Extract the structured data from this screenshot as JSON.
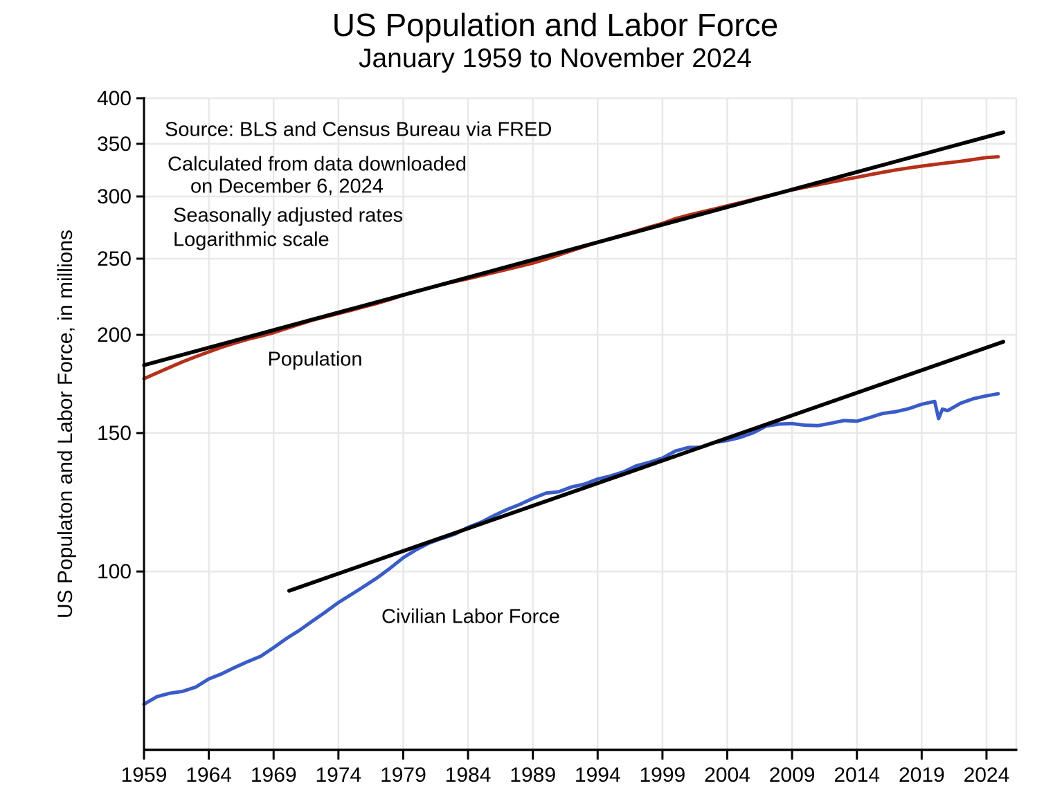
{
  "page": {
    "background": "#ffffff"
  },
  "chart_data": {
    "type": "line",
    "title": "US Population and Labor Force",
    "subtitle": "January 1959 to November 2024",
    "ylabel": "US Populaton and Labor Force, in millions",
    "xlabel": "",
    "x_scale": "linear",
    "y_scale": "log",
    "x_range": [
      1959,
      2026.3
    ],
    "y_range": [
      59.3,
      400
    ],
    "x_ticks": [
      1959,
      1964,
      1969,
      1974,
      1979,
      1984,
      1989,
      1994,
      1999,
      2004,
      2009,
      2014,
      2019,
      2024
    ],
    "y_ticks": [
      100,
      150,
      200,
      250,
      300,
      350,
      400
    ],
    "grid": true,
    "grid_color": "#e8e8e8",
    "axis_color": "#000000",
    "annotations": [
      {
        "text": "Source:  BLS and Census Bureau via FRED"
      },
      {
        "text": "Calculated from data downloaded"
      },
      {
        "text": "on December 6, 2024"
      },
      {
        "text": "Seasonally adjusted rates"
      },
      {
        "text": "Logarithmic scale"
      }
    ],
    "series": [
      {
        "name": "population",
        "label": "Population",
        "color": "#b5311a",
        "width": 5,
        "x": [
          1959,
          1960,
          1961,
          1962,
          1963,
          1964,
          1965,
          1966,
          1967,
          1968,
          1969,
          1970,
          1971,
          1972,
          1973,
          1974,
          1975,
          1976,
          1977,
          1978,
          1979,
          1980,
          1981,
          1982,
          1983,
          1984,
          1985,
          1986,
          1987,
          1988,
          1989,
          1990,
          1991,
          1992,
          1993,
          1994,
          1995,
          1996,
          1997,
          1998,
          1999,
          2000,
          2001,
          2002,
          2003,
          2004,
          2005,
          2006,
          2007,
          2008,
          2009,
          2010,
          2011,
          2012,
          2013,
          2014,
          2015,
          2016,
          2017,
          2018,
          2019,
          2020,
          2021,
          2022,
          2023,
          2024,
          2024.9
        ],
        "y": [
          175.9,
          178.9,
          181.9,
          184.9,
          187.6,
          190.3,
          192.9,
          195.2,
          197.4,
          199.3,
          201.3,
          203.8,
          206.3,
          208.8,
          210.9,
          212.9,
          215.0,
          217.2,
          219.4,
          221.9,
          224.6,
          227.2,
          229.5,
          231.7,
          233.8,
          235.8,
          237.9,
          240.1,
          242.3,
          244.5,
          246.8,
          249.6,
          252.7,
          256.0,
          259.2,
          262.3,
          265.2,
          268.1,
          271.1,
          274.2,
          277.2,
          281.1,
          284.0,
          286.6,
          289.1,
          291.8,
          294.5,
          297.4,
          300.2,
          303.0,
          305.8,
          308.2,
          310.5,
          312.8,
          315.1,
          317.3,
          319.7,
          322.0,
          324.2,
          326.1,
          327.9,
          329.5,
          331.0,
          332.5,
          334.3,
          336.2,
          337.0
        ]
      },
      {
        "name": "civilian-labor-force",
        "label": "Civilian Labor Force",
        "color": "#3a5cc6",
        "width": 5,
        "x": [
          1959,
          1960,
          1961,
          1962,
          1963,
          1964,
          1965,
          1966,
          1967,
          1968,
          1969,
          1970,
          1971,
          1972,
          1973,
          1974,
          1975,
          1976,
          1977,
          1978,
          1979,
          1980,
          1981,
          1982,
          1983,
          1984,
          1985,
          1986,
          1987,
          1988,
          1989,
          1990,
          1991,
          1992,
          1993,
          1994,
          1995,
          1996,
          1997,
          1998,
          1999,
          2000,
          2001,
          2002,
          2003,
          2004,
          2005,
          2006,
          2007,
          2008,
          2009,
          2010,
          2011,
          2012,
          2013,
          2014,
          2015,
          2016,
          2017,
          2018,
          2019,
          2020,
          2020.3,
          2020.6,
          2021,
          2022,
          2023,
          2024,
          2024.9
        ],
        "y": [
          67.8,
          69.3,
          70.0,
          70.4,
          71.3,
          73.0,
          74.1,
          75.5,
          76.8,
          78.0,
          80.0,
          82.2,
          84.2,
          86.5,
          88.8,
          91.3,
          93.5,
          95.8,
          98.2,
          101.0,
          104.1,
          106.6,
          108.7,
          110.2,
          111.6,
          113.8,
          115.5,
          117.8,
          119.9,
          121.7,
          123.9,
          125.8,
          126.3,
          128.1,
          129.2,
          131.1,
          132.3,
          133.9,
          136.3,
          137.7,
          139.4,
          142.3,
          143.8,
          143.9,
          145.9,
          146.8,
          148.1,
          150.1,
          153.1,
          154.0,
          154.2,
          153.5,
          153.3,
          154.4,
          155.6,
          155.3,
          157.0,
          158.9,
          159.7,
          161.1,
          163.2,
          164.6,
          156.5,
          160.9,
          160.2,
          163.7,
          165.9,
          167.3,
          168.3
        ]
      },
      {
        "name": "population-trend",
        "label": "",
        "color": "#000000",
        "width": 5.5,
        "x": [
          1959,
          2025.3
        ],
        "y": [
          183,
          362
        ]
      },
      {
        "name": "labor-force-trend",
        "label": "",
        "color": "#000000",
        "width": 5.5,
        "x": [
          1970.2,
          2025.3
        ],
        "y": [
          94.5,
          196
        ]
      }
    ]
  }
}
